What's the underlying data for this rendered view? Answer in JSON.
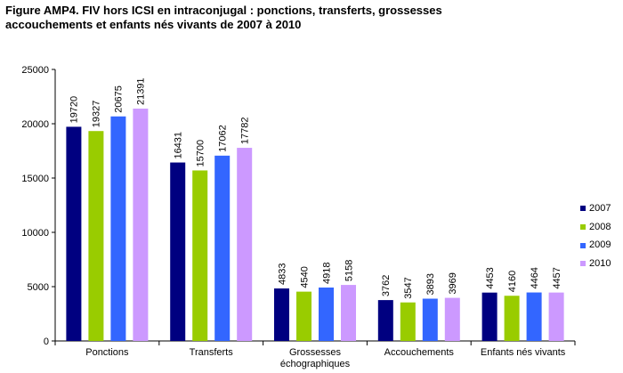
{
  "title_lines": [
    "Figure AMP4. FIV hors ICSI en intraconjugal : ponctions, transferts, grossesses",
    "accouchements et enfants nés vivants de 2007 à 2010"
  ],
  "chart_data": {
    "type": "bar",
    "title": "Figure AMP4. FIV hors ICSI en intraconjugal : ponctions, transferts, grossesses accouchements et enfants nés vivants de 2007 à 2010",
    "categories": [
      "Ponctions",
      "Transferts",
      "Grossesses échographiques",
      "Accouchements",
      "Enfants nés vivants"
    ],
    "category_label_lines": [
      [
        "Ponctions"
      ],
      [
        "Transferts"
      ],
      [
        "Grossesses",
        "échographiques"
      ],
      [
        "Accouchements"
      ],
      [
        "Enfants nés vivants"
      ]
    ],
    "series": [
      {
        "name": "2007",
        "color": "#000080",
        "values": [
          19720,
          16431,
          4833,
          3762,
          4453
        ]
      },
      {
        "name": "2008",
        "color": "#99cc00",
        "values": [
          19327,
          15700,
          4540,
          3547,
          4160
        ]
      },
      {
        "name": "2009",
        "color": "#3366ff",
        "values": [
          20675,
          17062,
          4918,
          3893,
          4464
        ]
      },
      {
        "name": "2010",
        "color": "#cc99ff",
        "values": [
          21391,
          17782,
          5158,
          3969,
          4457
        ]
      }
    ],
    "ylim": [
      0,
      25000
    ],
    "yticks": [
      0,
      5000,
      10000,
      15000,
      20000,
      25000
    ],
    "xlabel": "",
    "ylabel": "",
    "grid": false,
    "legend_position": "right"
  }
}
